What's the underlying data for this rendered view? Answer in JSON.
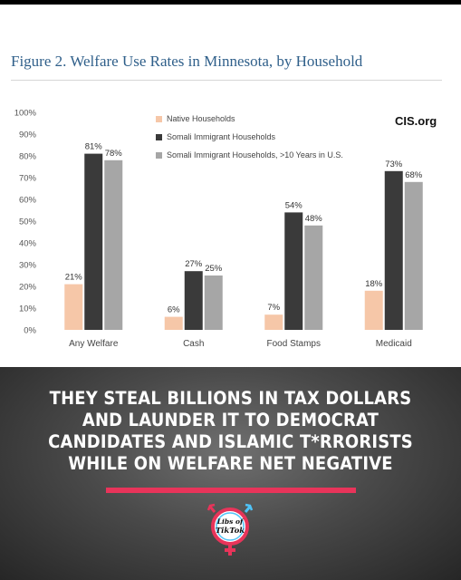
{
  "title": "Figure 2. Welfare Use Rates in Minnesota, by Household",
  "source_label": "CIS.org",
  "caption_lines": [
    "THEY STEAL BILLIONS IN TAX DOLLARS",
    "AND LAUNDER IT TO DEMOCRAT",
    "CANDIDATES AND ISLAMIC T*RRORISTS",
    "WHILE ON WELFARE NET NEGATIVE"
  ],
  "logo": {
    "line1": "Libs of",
    "line2": "TikTok"
  },
  "colors": {
    "native": "#f6c7a8",
    "somali": "#3a3a3a",
    "somali_10yr": "#a6a6a6",
    "title": "#2f5f8a",
    "accent": "#e8345a"
  },
  "chart_data": {
    "type": "bar",
    "title": "Figure 2. Welfare Use Rates in Minnesota, by Household",
    "categories": [
      "Any Welfare",
      "Cash",
      "Food Stamps",
      "Medicaid"
    ],
    "series": [
      {
        "name": "Native Households",
        "values": [
          21,
          6,
          7,
          18
        ],
        "labels": [
          "21%",
          "6%",
          "7%",
          "18%"
        ]
      },
      {
        "name": "Somali Immigrant Households",
        "values": [
          81,
          27,
          54,
          73
        ],
        "labels": [
          "81%",
          "27%",
          "54%",
          "73%"
        ]
      },
      {
        "name": "Somali Immigrant Households, >10 Years in U.S.",
        "values": [
          78,
          25,
          48,
          68
        ],
        "labels": [
          "78%",
          "25%",
          "48%",
          "68%"
        ]
      }
    ],
    "ylim": [
      0,
      100
    ],
    "yticks": [
      "0%",
      "10%",
      "20%",
      "30%",
      "40%",
      "50%",
      "60%",
      "70%",
      "80%",
      "90%",
      "100%"
    ],
    "ytick_values": [
      0,
      10,
      20,
      30,
      40,
      50,
      60,
      70,
      80,
      90,
      100
    ],
    "legend_position": "top",
    "grid": false,
    "xlabel": "",
    "ylabel": ""
  }
}
